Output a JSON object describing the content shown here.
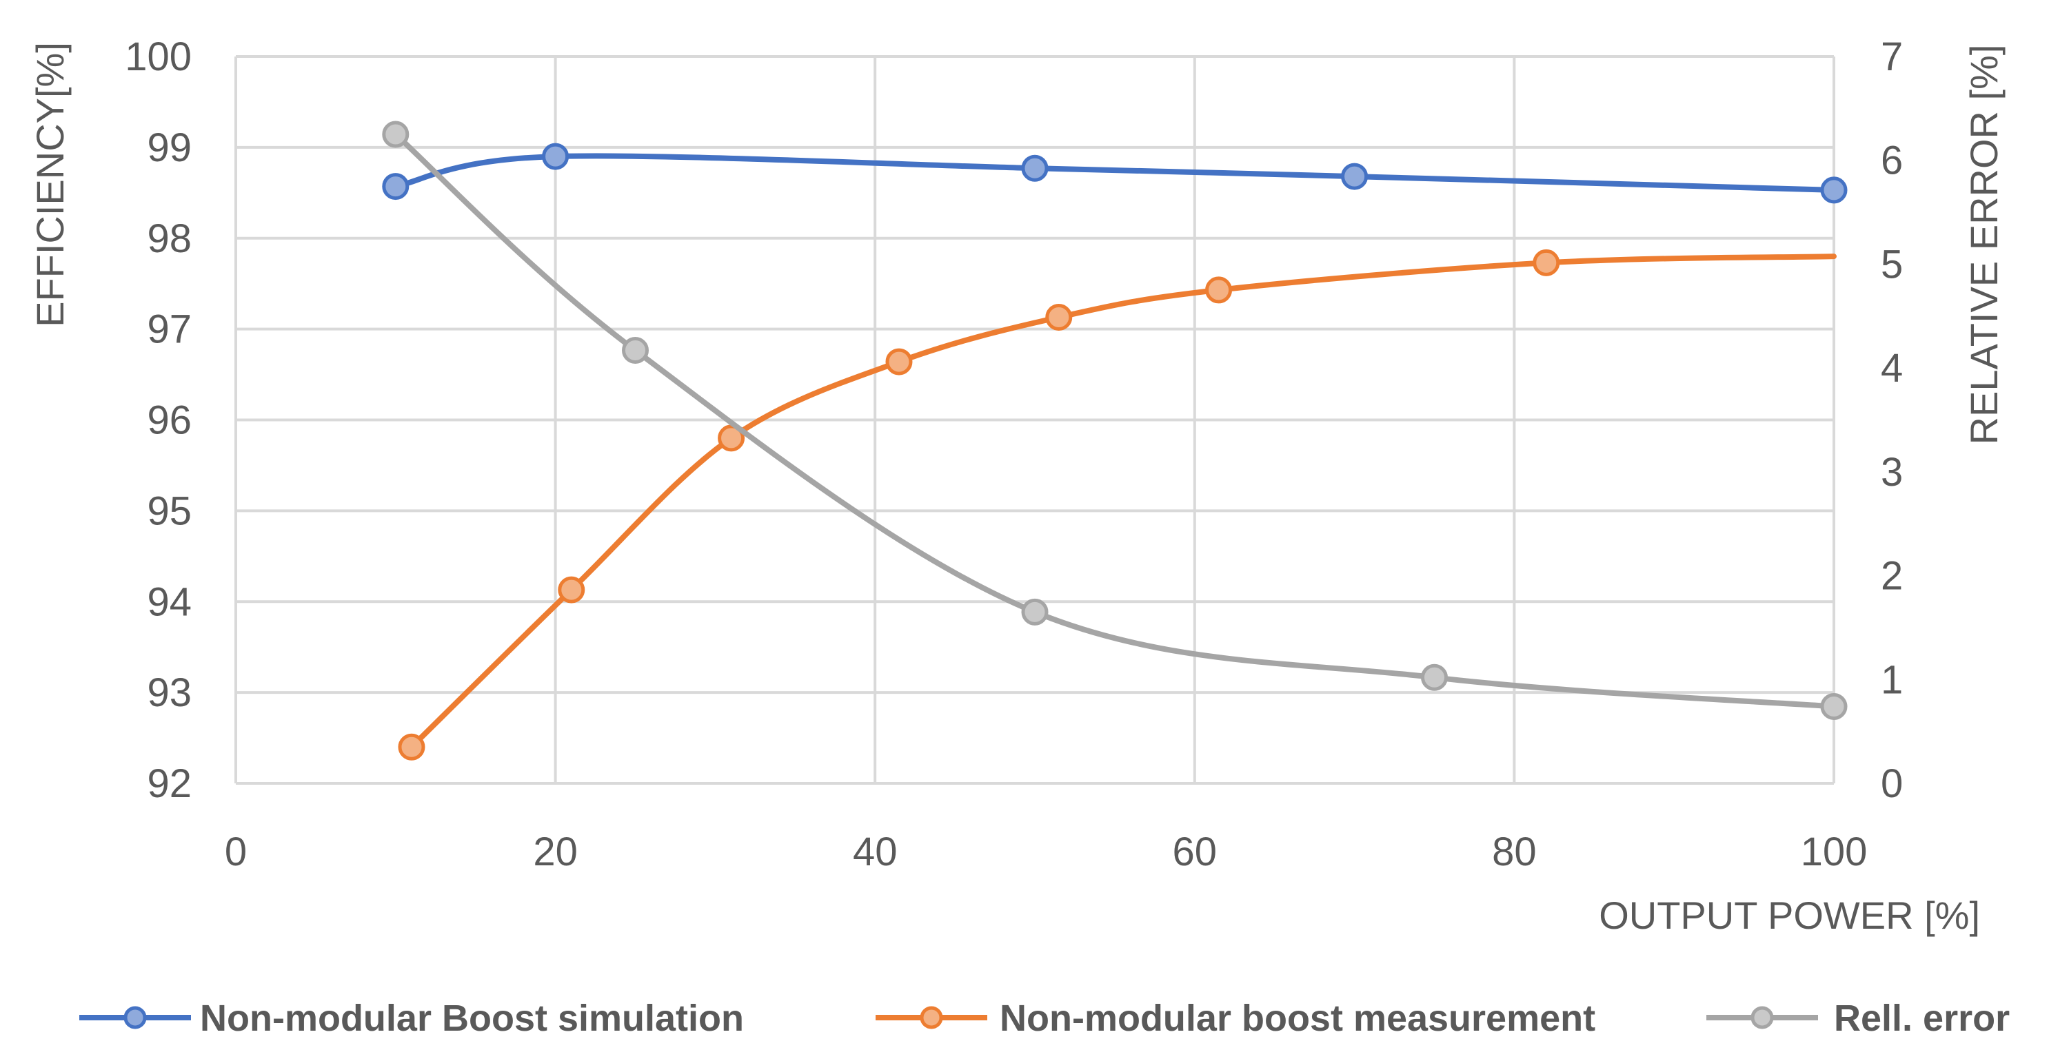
{
  "chart_data": {
    "type": "line",
    "title": "",
    "xlabel": "OUTPUT POWER [%]",
    "ylabel": "EFFICIENCY[%]",
    "y2label": "RELATIVE ERROR [%]",
    "xlim": [
      0,
      100
    ],
    "ylim": [
      92,
      100
    ],
    "y2lim": [
      0,
      7
    ],
    "x_ticks": [
      "0",
      "20",
      "40",
      "60",
      "80",
      "100"
    ],
    "y_ticks": [
      "92",
      "93",
      "94",
      "95",
      "96",
      "97",
      "98",
      "99",
      "100"
    ],
    "y2_ticks": [
      "0",
      "1",
      "2",
      "3",
      "4",
      "5",
      "6",
      "7"
    ],
    "grid": true,
    "legend_position": "bottom",
    "series": [
      {
        "name": "Non-modular Boost simulation",
        "axis": "left",
        "color": "#4472c4",
        "marker_fill": "#8faadc",
        "points": [
          {
            "x": 10,
            "y": 98.57
          },
          {
            "x": 20,
            "y": 98.9
          },
          {
            "x": 50,
            "y": 98.77
          },
          {
            "x": 70,
            "y": 98.68
          },
          {
            "x": 100,
            "y": 98.53
          }
        ],
        "curve_end_x": 100
      },
      {
        "name": "Non-modular boost measurement",
        "axis": "left",
        "color": "#ed7d31",
        "marker_fill": "#f4b183",
        "points": [
          {
            "x": 11,
            "y": 92.4
          },
          {
            "x": 21,
            "y": 94.13
          },
          {
            "x": 31,
            "y": 95.8
          },
          {
            "x": 41.5,
            "y": 96.64
          },
          {
            "x": 51.5,
            "y": 97.13
          },
          {
            "x": 61.5,
            "y": 97.43
          },
          {
            "x": 82,
            "y": 97.73
          }
        ],
        "curve_end_x": 100,
        "curve_end_y": 97.8
      },
      {
        "name": "Rell. error",
        "axis": "right",
        "color": "#a5a5a5",
        "marker_fill": "#c9c9c9",
        "points": [
          {
            "x": 10,
            "y": 6.25
          },
          {
            "x": 25,
            "y": 4.17
          },
          {
            "x": 50,
            "y": 1.65
          },
          {
            "x": 75,
            "y": 1.02
          },
          {
            "x": 100,
            "y": 0.74
          }
        ],
        "curve_end_x": 100
      }
    ]
  }
}
